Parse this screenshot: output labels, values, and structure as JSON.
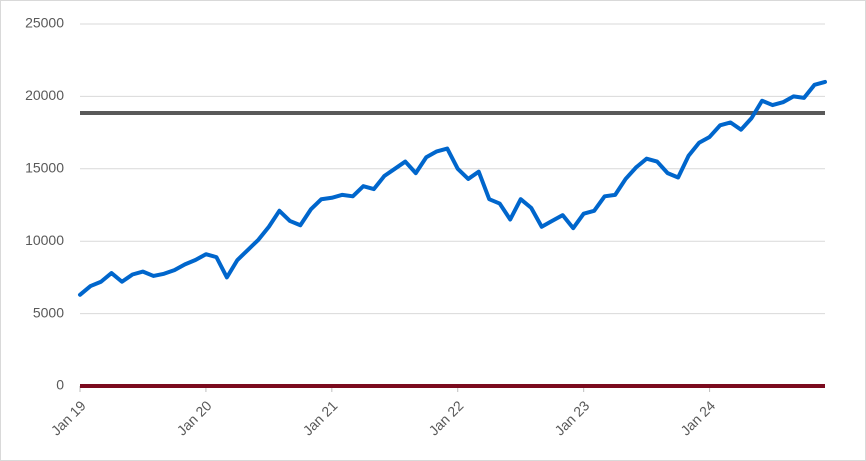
{
  "chart_data": {
    "type": "line",
    "categories": [
      "Jan 19",
      null,
      null,
      null,
      null,
      null,
      null,
      null,
      null,
      null,
      null,
      null,
      "Jan 20",
      null,
      null,
      null,
      null,
      null,
      null,
      null,
      null,
      null,
      null,
      null,
      "Jan 21",
      null,
      null,
      null,
      null,
      null,
      null,
      null,
      null,
      null,
      null,
      null,
      "Jan 22",
      null,
      null,
      null,
      null,
      null,
      null,
      null,
      null,
      null,
      null,
      null,
      "Jan 23",
      null,
      null,
      null,
      null,
      null,
      null,
      null,
      null,
      null,
      null,
      null,
      "Jan 24",
      null,
      null,
      null,
      null,
      null,
      null,
      null,
      null,
      null,
      null,
      null
    ],
    "series": [
      {
        "color": "#0066cc",
        "values": [
          6300,
          6900,
          7200,
          7800,
          7200,
          7700,
          7900,
          7600,
          7750,
          8000,
          8400,
          8700,
          9100,
          8900,
          7500,
          8700,
          9400,
          10100,
          11000,
          12100,
          11400,
          11100,
          12200,
          12900,
          13000,
          13200,
          13100,
          13800,
          13600,
          14500,
          15000,
          15500,
          14700,
          15800,
          16200,
          16400,
          15000,
          14300,
          14800,
          12900,
          12600,
          11500,
          12900,
          12300,
          11000,
          11400,
          11800,
          10900,
          11900,
          12100,
          13100,
          13200,
          14300,
          15100,
          15700,
          15500,
          14700,
          14400,
          15900,
          16800,
          17200,
          18000,
          18200,
          17700,
          18500,
          19700,
          19400,
          19600,
          20000,
          19900,
          20800,
          21000
        ]
      }
    ],
    "hlines": [
      {
        "value": 18850,
        "color": "#595959"
      },
      {
        "value": 0,
        "color": "#7b0a1e"
      }
    ],
    "ylim": [
      0,
      25000
    ],
    "yticks": [
      0,
      5000,
      10000,
      15000,
      20000,
      25000
    ],
    "grid": true
  }
}
